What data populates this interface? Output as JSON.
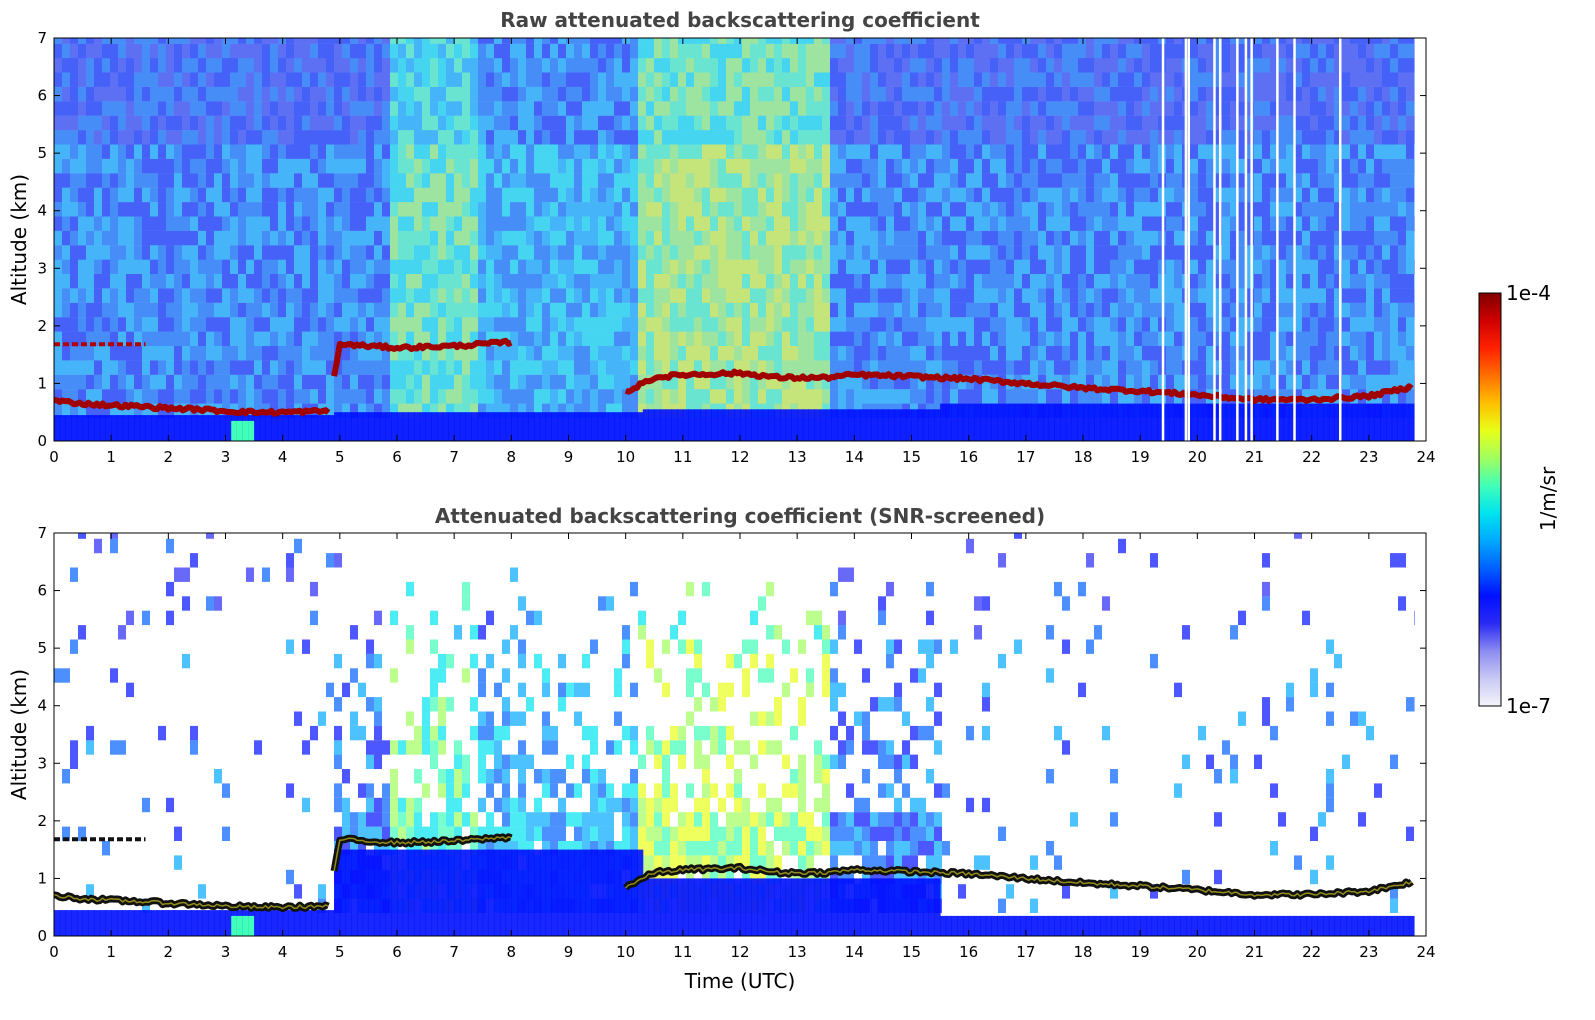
{
  "chart_data": [
    {
      "type": "heatmap",
      "title": "Raw attenuated backscattering coefficient",
      "xlabel": "",
      "ylabel": "Altitude (km)",
      "xlim": [
        0,
        24
      ],
      "ylim": [
        0,
        7
      ],
      "x_ticks": [
        0,
        1,
        2,
        3,
        4,
        5,
        6,
        7,
        8,
        9,
        10,
        11,
        12,
        13,
        14,
        15,
        16,
        17,
        18,
        19,
        20,
        21,
        22,
        23,
        24
      ],
      "y_ticks": [
        0,
        1,
        2,
        3,
        4,
        5,
        6,
        7
      ],
      "variant": "raw",
      "cloud_layer": {
        "time_utc": [
          0,
          0.5,
          1,
          1.5,
          2,
          2.5,
          3,
          3.5,
          4,
          4.8,
          5,
          6,
          7,
          7.3,
          8,
          9,
          10,
          10.5,
          11,
          12,
          12.7,
          13.5,
          14,
          15,
          16,
          17,
          18,
          19,
          20,
          21,
          22,
          23,
          23.8
        ],
        "altitude_km": [
          0.7,
          0.65,
          0.62,
          0.6,
          0.57,
          0.55,
          0.52,
          0.5,
          0.5,
          0.52,
          1.68,
          1.62,
          1.65,
          1.67,
          1.72,
          null,
          0.85,
          1.1,
          1.15,
          1.18,
          1.1,
          1.1,
          1.15,
          1.12,
          1.08,
          1.0,
          0.92,
          0.87,
          0.8,
          0.72,
          0.72,
          0.78,
          0.95
        ]
      },
      "elevated_layer": {
        "time_utc": [
          0,
          1.6
        ],
        "altitude_km": 1.68
      },
      "data_gaps_utc": [
        19.4,
        19.8,
        19.85,
        20.3,
        20.4,
        20.7,
        20.85,
        20.95,
        21.4,
        21.7,
        22.5
      ]
    },
    {
      "type": "heatmap",
      "title": "Attenuated backscattering coefficient (SNR-screened)",
      "xlabel": "Time (UTC)",
      "ylabel": "Altitude (km)",
      "xlim": [
        0,
        24
      ],
      "ylim": [
        0,
        7
      ],
      "x_ticks": [
        0,
        1,
        2,
        3,
        4,
        5,
        6,
        7,
        8,
        9,
        10,
        11,
        12,
        13,
        14,
        15,
        16,
        17,
        18,
        19,
        20,
        21,
        22,
        23,
        24
      ],
      "y_ticks": [
        0,
        1,
        2,
        3,
        4,
        5,
        6,
        7
      ],
      "variant": "screened"
    }
  ],
  "colorbar": {
    "label": "1/m/sr",
    "max_label": "1e-4",
    "min_label": "1e-7",
    "colormap": [
      "#f4f4fb",
      "#c8c8f4",
      "#8c8cf2",
      "#2a2af5",
      "#0010ff",
      "#0060ff",
      "#00a8ff",
      "#00e4f0",
      "#40ffb8",
      "#a0ff60",
      "#e8ff18",
      "#ffc000",
      "#ff7000",
      "#ff2000",
      "#d00000",
      "#800000"
    ]
  }
}
